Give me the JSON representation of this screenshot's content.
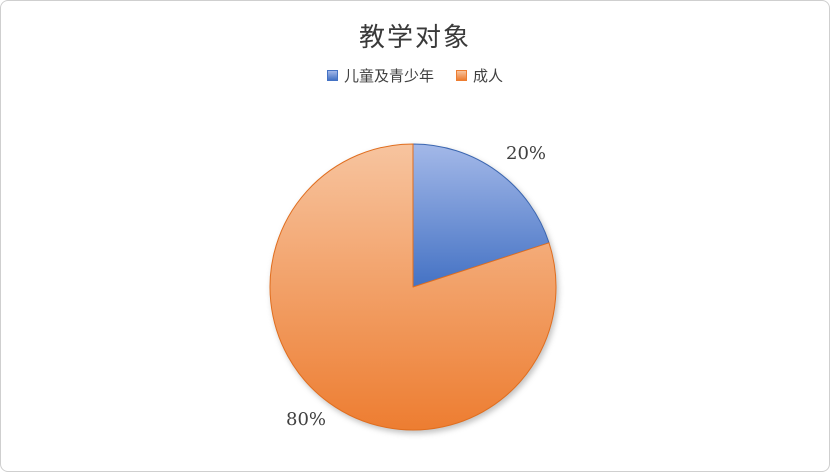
{
  "window": {
    "background": "#ffffff",
    "border_color": "#cfcfcf"
  },
  "chart_data": {
    "type": "pie",
    "title": "教学对象",
    "categories": [
      "儿童及青少年",
      "成人"
    ],
    "values": [
      20,
      80
    ],
    "labels": [
      "20%",
      "80%"
    ],
    "colors": [
      "#4472c4",
      "#ed7d31"
    ],
    "colors_light": [
      "#a3b8e8",
      "#f7c49f"
    ],
    "border_colors": [
      "#3b66b0",
      "#e06e1f"
    ],
    "legend_position": "top",
    "start_angle_deg": 0,
    "direction": "clockwise",
    "text_color": "#404040"
  }
}
